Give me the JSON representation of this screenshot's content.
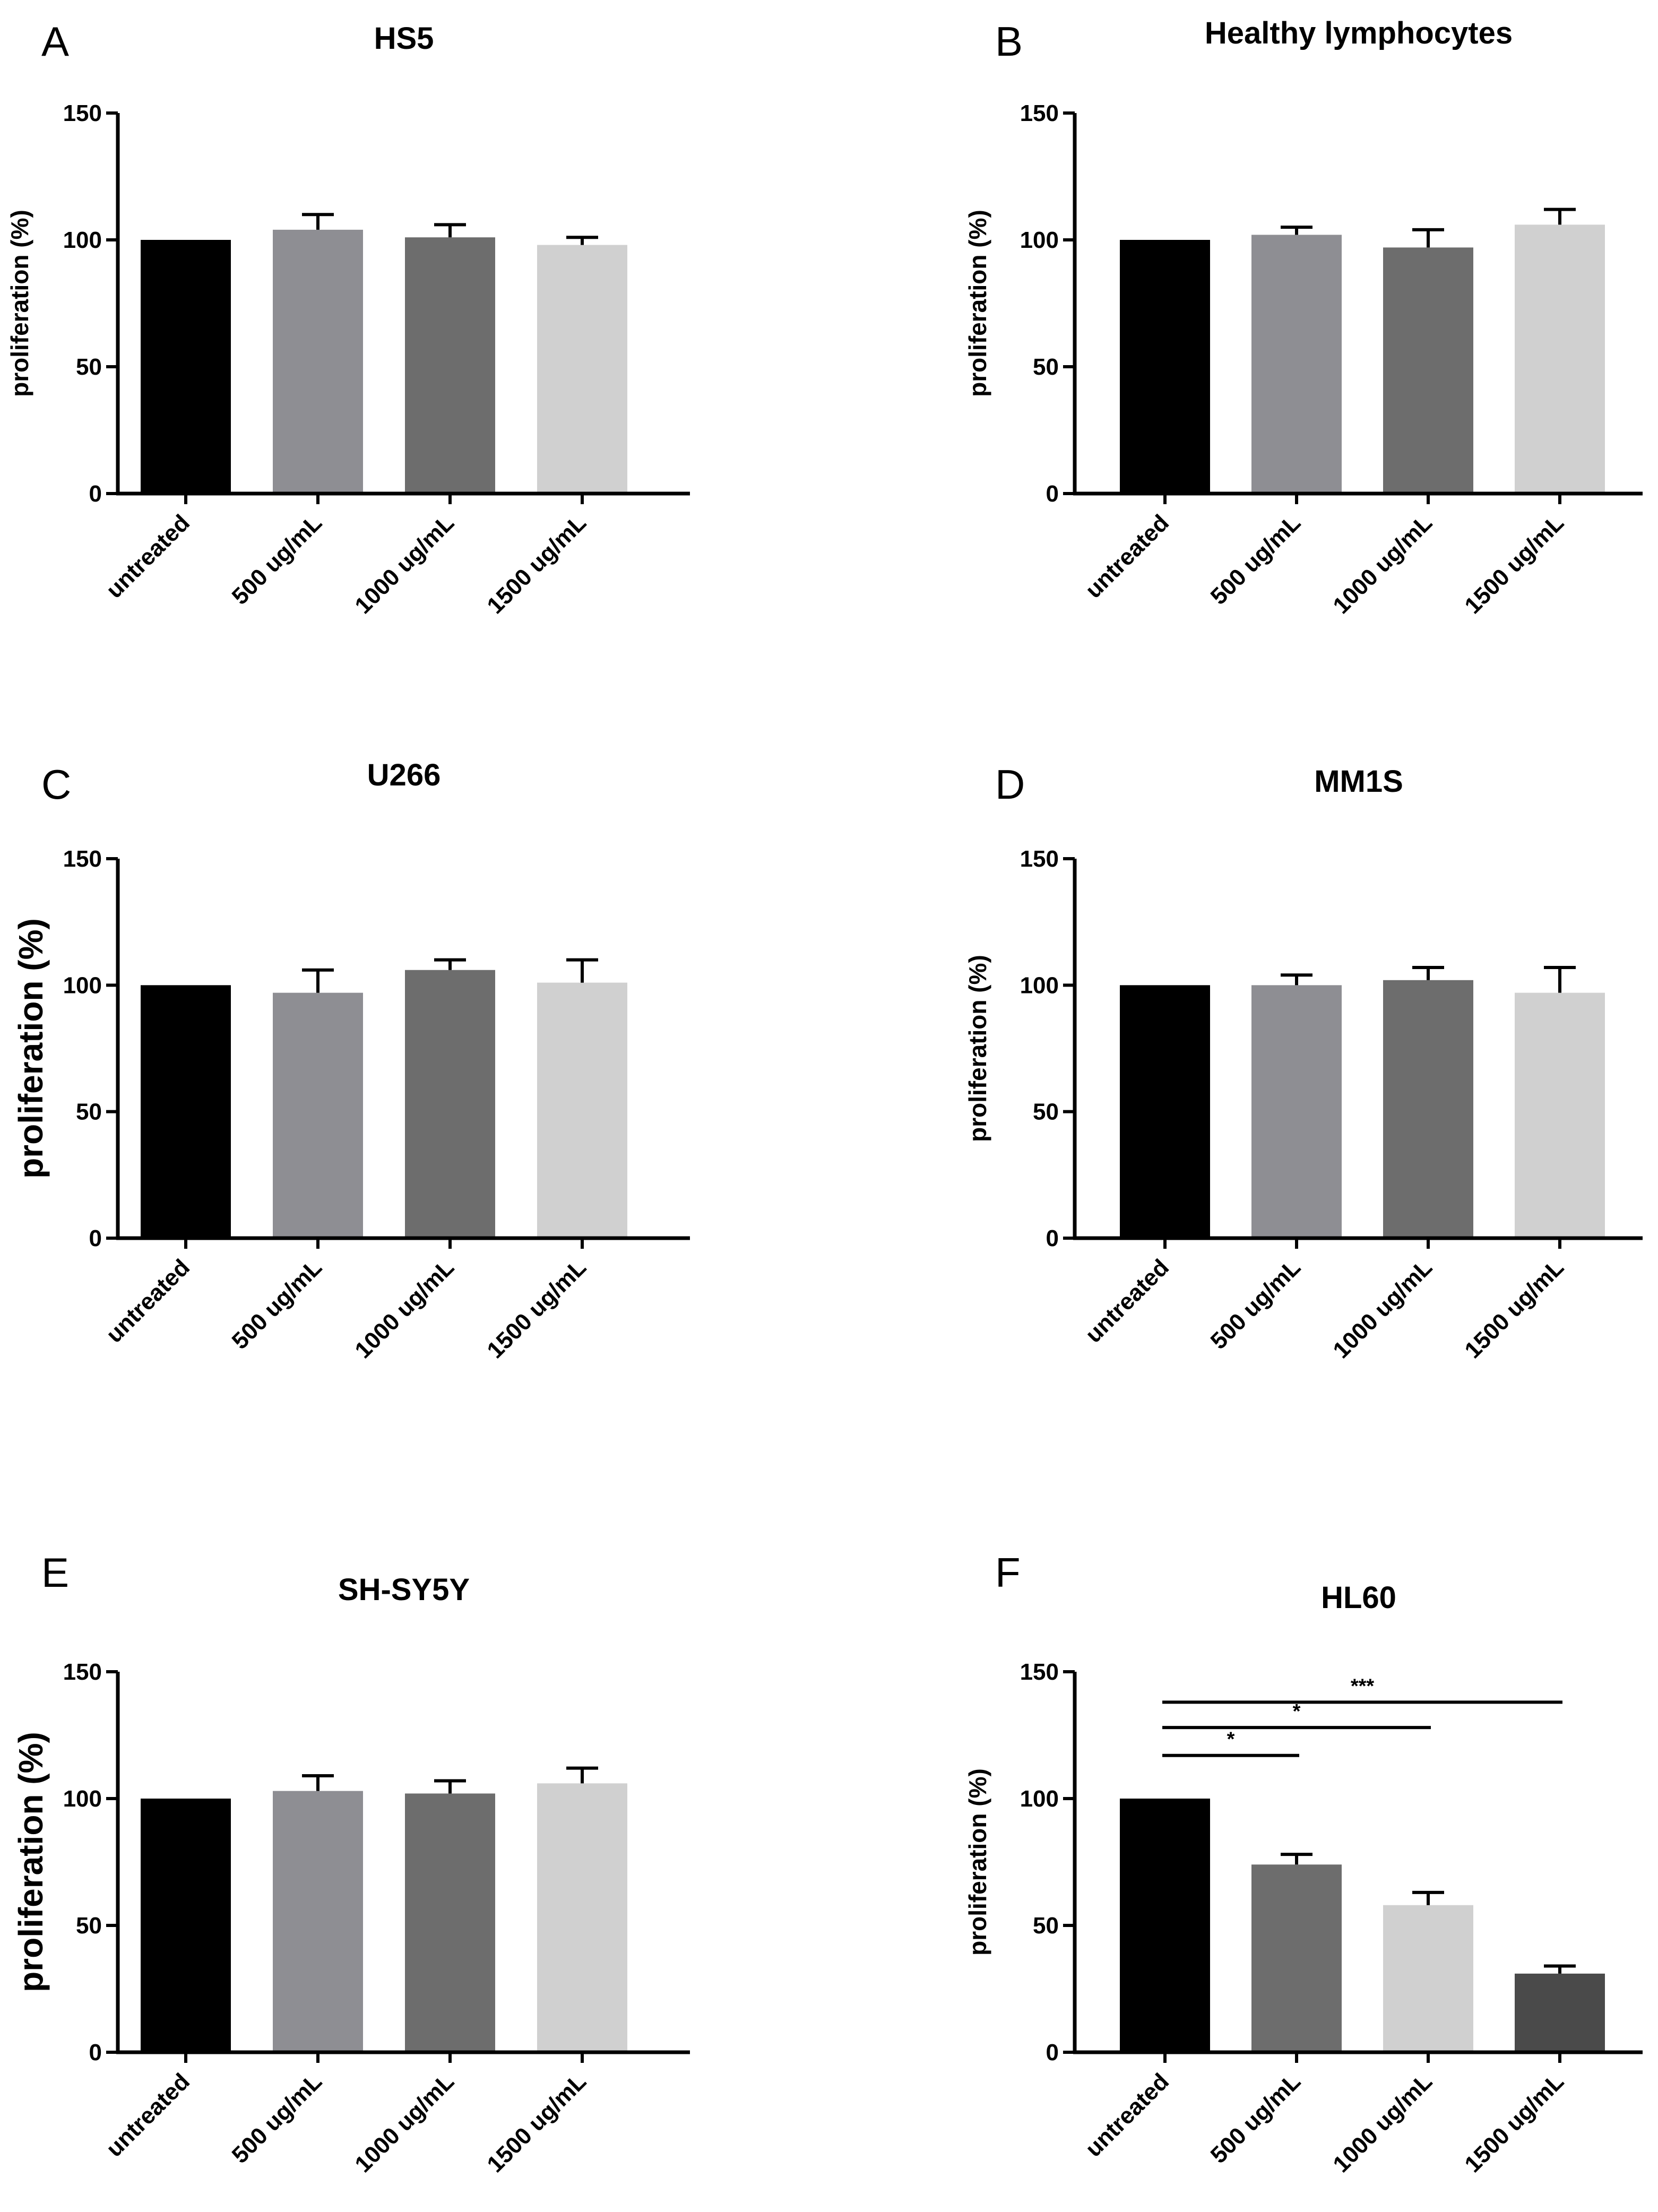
{
  "chart_data": [
    {
      "id": "A",
      "panel_label": "A",
      "type": "bar",
      "title": "HS5",
      "xlabel": "",
      "ylabel": "proliferation (%)",
      "ylabel_style": "small",
      "ylim": [
        0,
        150
      ],
      "yticks": [
        "0",
        "50",
        "100",
        "150"
      ],
      "categories": [
        "untreated",
        "500 ug/mL",
        "1000 ug/mL",
        "1500 ug/mL"
      ],
      "values": [
        100,
        104,
        101,
        98
      ],
      "errors": [
        0,
        6,
        5,
        3
      ],
      "colors": [
        "#000000",
        "#8e8e93",
        "#6d6d6d",
        "#d0d0d0"
      ],
      "significance": []
    },
    {
      "id": "B",
      "panel_label": "B",
      "type": "bar",
      "title": "Healthy lymphocytes",
      "xlabel": "",
      "ylabel": "proliferation (%)",
      "ylabel_style": "small",
      "ylim": [
        0,
        150
      ],
      "yticks": [
        "0",
        "50",
        "100",
        "150"
      ],
      "categories": [
        "untreated",
        "500 ug/mL",
        "1000 ug/mL",
        "1500 ug/mL"
      ],
      "values": [
        100,
        102,
        97,
        106
      ],
      "errors": [
        0,
        3,
        7,
        6
      ],
      "colors": [
        "#000000",
        "#8e8e93",
        "#6d6d6d",
        "#d0d0d0"
      ],
      "significance": []
    },
    {
      "id": "C",
      "panel_label": "C",
      "type": "bar",
      "title": "U266",
      "xlabel": "",
      "ylabel": "proliferation (%)",
      "ylabel_style": "large",
      "ylim": [
        0,
        150
      ],
      "yticks": [
        "0",
        "50",
        "100",
        "150"
      ],
      "categories": [
        "untreated",
        "500 ug/mL",
        "1000 ug/mL",
        "1500 ug/mL"
      ],
      "values": [
        100,
        97,
        106,
        101
      ],
      "errors": [
        0,
        9,
        4,
        9
      ],
      "colors": [
        "#000000",
        "#8e8e93",
        "#6d6d6d",
        "#d0d0d0"
      ],
      "significance": []
    },
    {
      "id": "D",
      "panel_label": "D",
      "type": "bar",
      "title": "MM1S",
      "xlabel": "",
      "ylabel": "proliferation (%)",
      "ylabel_style": "small",
      "ylim": [
        0,
        150
      ],
      "yticks": [
        "0",
        "50",
        "100",
        "150"
      ],
      "categories": [
        "untreated",
        "500 ug/mL",
        "1000 ug/mL",
        "1500 ug/mL"
      ],
      "values": [
        100,
        100,
        102,
        97
      ],
      "errors": [
        0,
        4,
        5,
        10
      ],
      "colors": [
        "#000000",
        "#8e8e93",
        "#6d6d6d",
        "#d0d0d0"
      ],
      "significance": []
    },
    {
      "id": "E",
      "panel_label": "E",
      "type": "bar",
      "title": "SH-SY5Y",
      "xlabel": "",
      "ylabel": "proliferation (%)",
      "ylabel_style": "large",
      "ylim": [
        0,
        150
      ],
      "yticks": [
        "0",
        "50",
        "100",
        "150"
      ],
      "categories": [
        "untreated",
        "500 ug/mL",
        "1000 ug/mL",
        "1500 ug/mL"
      ],
      "values": [
        100,
        103,
        102,
        106
      ],
      "errors": [
        0,
        6,
        5,
        6
      ],
      "colors": [
        "#000000",
        "#8e8e93",
        "#6d6d6d",
        "#d0d0d0"
      ],
      "significance": []
    },
    {
      "id": "F",
      "panel_label": "F",
      "type": "bar",
      "title": "HL60",
      "xlabel": "",
      "ylabel": "proliferation (%)",
      "ylabel_style": "small",
      "ylim": [
        0,
        150
      ],
      "yticks": [
        "0",
        "50",
        "100",
        "150"
      ],
      "categories": [
        "untreated",
        "500 ug/mL",
        "1000 ug/mL",
        "1500 ug/mL"
      ],
      "values": [
        100,
        74,
        58,
        31
      ],
      "errors": [
        0,
        4,
        5,
        3
      ],
      "colors": [
        "#000000",
        "#6d6d6d",
        "#d0d0d0",
        "#4a4a4a"
      ],
      "significance": [
        {
          "from": 0,
          "to": 1,
          "y": 117,
          "label": "*"
        },
        {
          "from": 0,
          "to": 2,
          "y": 128,
          "label": "*"
        },
        {
          "from": 0,
          "to": 3,
          "y": 138,
          "label": "***"
        }
      ]
    }
  ]
}
